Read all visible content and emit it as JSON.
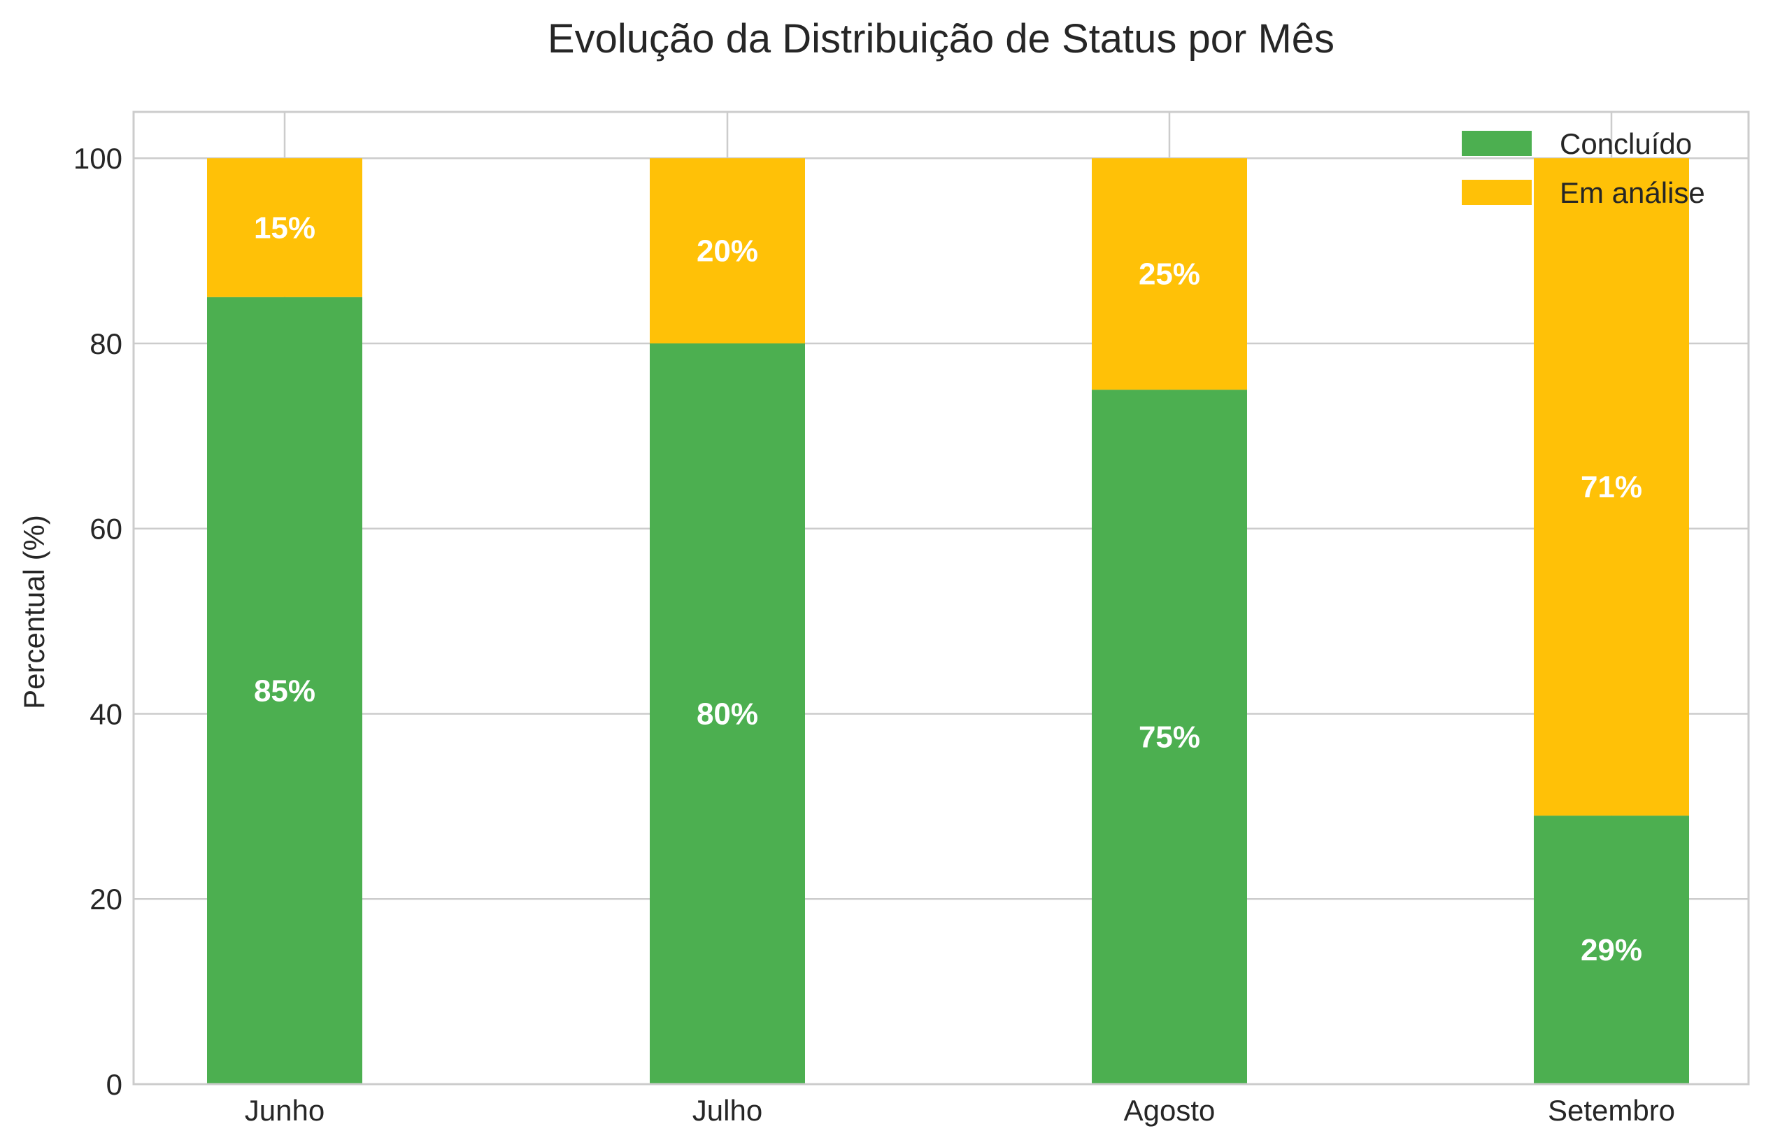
{
  "chart_data": {
    "type": "bar",
    "stacked": true,
    "title": "Evolução da Distribuição de Status por Mês",
    "xlabel": "",
    "ylabel": "Percentual (%)",
    "ylim": [
      0,
      105
    ],
    "yticks": [
      0,
      20,
      40,
      60,
      80,
      100
    ],
    "grid": true,
    "legend_position": "top-right",
    "categories": [
      "Junho",
      "Julho",
      "Agosto",
      "Setembro"
    ],
    "series": [
      {
        "name": "Concluído",
        "color": "#4caf50",
        "values": [
          85,
          80,
          75,
          29
        ],
        "labels": [
          "85%",
          "80%",
          "75%",
          "29%"
        ]
      },
      {
        "name": "Em análise",
        "color": "#ffc107",
        "values": [
          15,
          20,
          25,
          71
        ],
        "labels": [
          "15%",
          "20%",
          "25%",
          "71%"
        ]
      }
    ]
  }
}
